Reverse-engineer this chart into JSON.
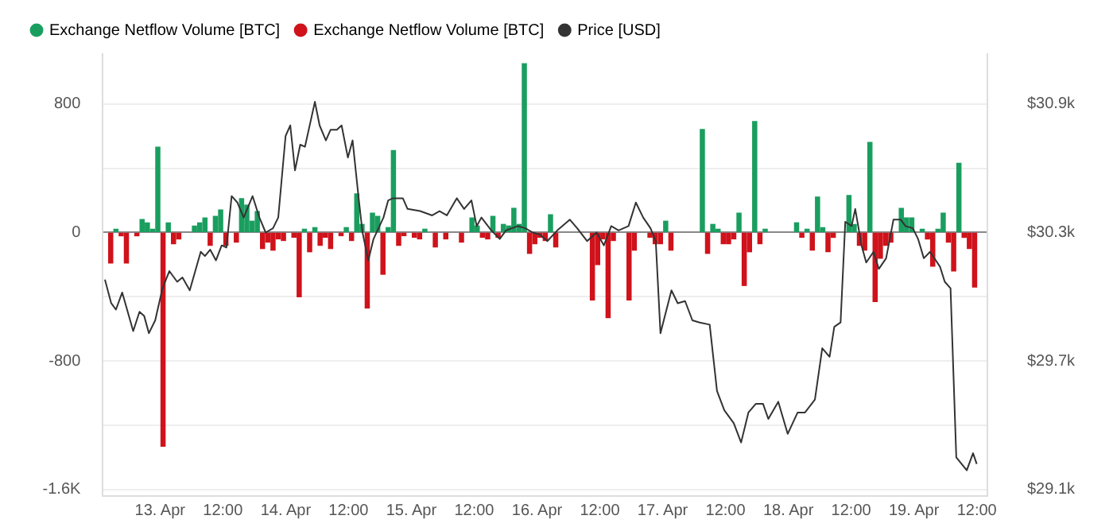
{
  "chart_data": {
    "type": "bar",
    "xlim": [
      "--04-12T13:30",
      "--04-19T14:30"
    ],
    "xticks": [
      {
        "value": "--04-13",
        "label": "13. Apr"
      },
      {
        "value": "--04-13T12:00",
        "label": "12:00"
      },
      {
        "value": "--04-14",
        "label": "14. Apr"
      },
      {
        "value": "--04-14T12:00",
        "label": "12:00"
      },
      {
        "value": "--04-15",
        "label": "15. Apr"
      },
      {
        "value": "--04-15T12:00",
        "label": "12:00"
      },
      {
        "value": "--04-16",
        "label": "16. Apr"
      },
      {
        "value": "--04-16T12:00",
        "label": "12:00"
      },
      {
        "value": "--04-17",
        "label": "17. Apr"
      },
      {
        "value": "--04-17T12:00",
        "label": "12:00"
      },
      {
        "value": "--04-18",
        "label": "18. Apr"
      },
      {
        "value": "--04-18T12:00",
        "label": "12:00"
      },
      {
        "value": "--04-19",
        "label": "19. Apr"
      },
      {
        "value": "--04-19T12:00",
        "label": "12:00"
      }
    ],
    "ylim": [
      -1640,
      1110
    ],
    "yticks": [
      {
        "value": -1600,
        "label": "-1.6K"
      },
      {
        "value": -1200,
        "label": null
      },
      -800,
      {
        "value": -400,
        "label": null
      },
      0,
      {
        "value": 400,
        "label": null
      },
      800
    ],
    "y2lim": [
      29070,
      31133
    ],
    "y2ticks": [
      {
        "value": 29100,
        "label": "$29.1k"
      },
      {
        "value": 29700,
        "label": "$29.7k"
      },
      {
        "value": 30300,
        "label": "$30.3k"
      },
      {
        "value": 30900,
        "label": "$30.9k"
      }
    ],
    "grid": "y",
    "legend": "top left",
    "series": [
      {
        "name": "Exchange Netflow Volume [BTC]",
        "color": "#1a9e5f",
        "x": [
          "--04-12T16:00",
          "--04-12T21:00",
          "--04-12T22:00",
          "--04-12T23:00",
          "--04-13T00:00",
          "--04-13T02:00",
          "--04-13T07:00",
          "--04-13T08:00",
          "--04-13T09:00",
          "--04-13T11:00",
          "--04-13T12:00",
          "--04-13T16:00",
          "--04-13T17:00",
          "--04-13T18:00",
          "--04-13T19:00",
          "--04-14T04:00",
          "--04-14T06:00",
          "--04-14T12:00",
          "--04-14T14:00",
          "--04-14T15:00",
          "--04-14T17:00",
          "--04-14T18:00",
          "--04-14T20:00",
          "--04-14T21:00",
          "--04-15T03:00",
          "--04-15T12:00",
          "--04-15T13:00",
          "--04-15T16:00",
          "--04-15T18:00",
          "--04-15T19:00",
          "--04-15T20:00",
          "--04-15T21:00",
          "--04-15T22:00",
          "--04-16T03:00",
          "--04-17T01:00",
          "--04-17T08:00",
          "--04-17T10:00",
          "--04-17T11:00",
          "--04-17T15:00",
          "--04-17T18:00",
          "--04-17T20:00",
          "--04-18T02:00",
          "--04-18T04:00",
          "--04-18T06:00",
          "--04-18T07:00",
          "--04-18T12:00",
          "--04-18T13:00",
          "--04-18T16:00",
          "--04-18T22:00",
          "--04-18T23:00",
          "--04-19T00:00",
          "--04-19T02:00",
          "--04-19T05:00",
          "--04-19T06:00",
          "--04-19T09:00"
        ],
        "values": [
          20,
          80,
          60,
          20,
          530,
          60,
          40,
          60,
          90,
          100,
          140,
          210,
          170,
          70,
          130,
          20,
          30,
          30,
          240,
          50,
          120,
          100,
          30,
          510,
          20,
          90,
          40,
          100,
          50,
          40,
          150,
          50,
          1050,
          110,
          70,
          640,
          50,
          20,
          120,
          690,
          20,
          60,
          20,
          220,
          30,
          230,
          50,
          560,
          150,
          90,
          90,
          20,
          20,
          120,
          430
        ]
      },
      {
        "name": "Exchange Netflow Volume [BTC]",
        "color": "#d0121b",
        "x": [
          "--04-12T15:00",
          "--04-12T17:00",
          "--04-12T18:00",
          "--04-12T20:00",
          "--04-13T01:00",
          "--04-13T03:00",
          "--04-13T04:00",
          "--04-13T10:00",
          "--04-13T13:00",
          "--04-13T15:00",
          "--04-13T20:00",
          "--04-13T21:00",
          "--04-13T22:00",
          "--04-13T23:00",
          "--04-14T00:00",
          "--04-14T02:00",
          "--04-14T03:00",
          "--04-14T05:00",
          "--04-14T07:00",
          "--04-14T08:00",
          "--04-14T09:00",
          "--04-14T11:00",
          "--04-14T13:00",
          "--04-14T16:00",
          "--04-14T19:00",
          "--04-14T22:00",
          "--04-14T23:00",
          "--04-15T01:00",
          "--04-15T02:00",
          "--04-15T05:00",
          "--04-15T07:00",
          "--04-15T10:00",
          "--04-15T14:00",
          "--04-15T15:00",
          "--04-15T17:00",
          "--04-15T23:00",
          "--04-16T00:00",
          "--04-16T01:00",
          "--04-16T02:00",
          "--04-16T04:00",
          "--04-16T11:00",
          "--04-16T12:00",
          "--04-16T13:00",
          "--04-16T14:00",
          "--04-16T15:00",
          "--04-16T18:00",
          "--04-16T19:00",
          "--04-16T22:00",
          "--04-16T23:00",
          "--04-17T00:00",
          "--04-17T02:00",
          "--04-17T09:00",
          "--04-17T12:00",
          "--04-17T13:00",
          "--04-17T14:00",
          "--04-17T16:00",
          "--04-17T17:00",
          "--04-17T19:00",
          "--04-18T03:00",
          "--04-18T05:00",
          "--04-18T08:00",
          "--04-18T09:00",
          "--04-18T14:00",
          "--04-18T15:00",
          "--04-18T17:00",
          "--04-18T18:00",
          "--04-18T19:00",
          "--04-18T20:00",
          "--04-19T03:00",
          "--04-19T04:00",
          "--04-19T07:00",
          "--04-19T08:00",
          "--04-19T10:00",
          "--04-19T11:00",
          "--04-19T12:00"
        ],
        "values": [
          -190,
          -20,
          -190,
          -20,
          -1330,
          -70,
          -40,
          -80,
          -80,
          -60,
          -100,
          -60,
          -110,
          -40,
          -50,
          -30,
          -400,
          -120,
          -80,
          -30,
          -100,
          -20,
          -50,
          -470,
          -260,
          -80,
          -20,
          -30,
          -40,
          -90,
          -40,
          -60,
          -30,
          -40,
          -30,
          -130,
          -70,
          -30,
          -50,
          -90,
          -420,
          -200,
          -40,
          -530,
          -50,
          -420,
          -110,
          -30,
          -70,
          -70,
          -110,
          -130,
          -70,
          -70,
          -40,
          -330,
          -120,
          -70,
          -30,
          -110,
          -120,
          -30,
          -80,
          -110,
          -430,
          -160,
          -80,
          -60,
          -40,
          -210,
          -60,
          -240,
          -30,
          -100,
          -340
        ]
      },
      {
        "type": "line",
        "name": "Price [USD]",
        "color": "#333333",
        "axis": "y2",
        "marker": "none",
        "line_style": "solid",
        "x": [
          "--04-12T13:54",
          "--04-12T15:06",
          "--04-12T16:00",
          "--04-12T17:12",
          "--04-12T19:18",
          "--04-12T20:30",
          "--04-12T21:24",
          "--04-12T22:18",
          "--04-12T23:30",
          "--04-13T00:54",
          "--04-13T02:12",
          "--04-13T03:42",
          "--04-13T04:42",
          "--04-13T06:06",
          "--04-13T08:12",
          "--04-13T09:00",
          "--04-13T10:00",
          "--04-13T11:06",
          "--04-13T12:12",
          "--04-13T13:06",
          "--04-13T14:06",
          "--04-13T15:12",
          "--04-13T16:24",
          "--04-13T18:06",
          "--04-13T19:24",
          "--04-13T20:36",
          "--04-13T22:00",
          "--04-13T23:00",
          "--04-14T00:24",
          "--04-14T01:18",
          "--04-14T02:12",
          "--04-14T03:12",
          "--04-14T04:06",
          "--04-14T06:00",
          "--04-14T06:54",
          "--04-14T08:06",
          "--04-14T09:00",
          "--04-14T10:12",
          "--04-14T11:06",
          "--04-14T12:18",
          "--04-14T13:12",
          "--04-14T14:24",
          "--04-14T15:06",
          "--04-14T16:12",
          "--04-14T17:12",
          "--04-14T19:06",
          "--04-14T20:00",
          "--04-14T20:54",
          "--04-14T22:48",
          "--04-14T23:42",
          "--04-15T02:06",
          "--04-15T04:24",
          "--04-15T05:48",
          "--04-15T07:12",
          "--04-15T09:06",
          "--04-15T10:30",
          "--04-15T11:54",
          "--04-15T12:54",
          "--04-15T13:48",
          "--04-15T15:42",
          "--04-15T17:18",
          "--04-15T18:30",
          "--04-15T20:48",
          "--04-15T22:12",
          "--04-15T23:36",
          "--04-16T01:00",
          "--04-16T02:24",
          "--04-16T04:18",
          "--04-16T06:42",
          "--04-16T08:06",
          "--04-16T10:00",
          "--04-16T11:48",
          "--04-16T13:12",
          "--04-16T14:36",
          "--04-16T16:00",
          "--04-16T17:54",
          "--04-16T19:18",
          "--04-16T20:42",
          "--04-16T22:06",
          "--04-16T23:06",
          "--04-17T00:00",
          "--04-17T02:06",
          "--04-17T03:18",
          "--04-17T04:42",
          "--04-17T06:06",
          "--04-17T07:30",
          "--04-17T09:24",
          "--04-17T10:48",
          "--04-17T12:12",
          "--04-17T14:00",
          "--04-17T15:24",
          "--04-17T16:48",
          "--04-17T18:12",
          "--04-17T19:36",
          "--04-17T20:36",
          "--04-17T22:30",
          "--04-18T00:18",
          "--04-18T02:12",
          "--04-18T03:36",
          "--04-18T05:30",
          "--04-18T06:54",
          "--04-18T08:18",
          "--04-18T09:12",
          "--04-18T10:24",
          "--04-18T11:18",
          "--04-18T12:30",
          "--04-18T13:12",
          "--04-18T14:24",
          "--04-18T15:18",
          "--04-18T16:42",
          "--04-18T17:42",
          "--04-18T19:06",
          "--04-18T20:30",
          "--04-18T21:54",
          "--04-18T22:48",
          "--04-19T00:12",
          "--04-19T01:12",
          "--04-19T02:18",
          "--04-19T03:30",
          "--04-19T05:24",
          "--04-19T06:18",
          "--04-19T07:24",
          "--04-19T08:30",
          "--04-19T10:30",
          "--04-19T11:42",
          "--04-19T12:24"
        ],
        "values": [
          30080,
          29970,
          29940,
          30020,
          29840,
          29930,
          29910,
          29830,
          29890,
          30040,
          30120,
          30070,
          30090,
          30030,
          30210,
          30190,
          30220,
          30170,
          30240,
          30230,
          30470,
          30440,
          30370,
          30470,
          30370,
          30300,
          30320,
          30370,
          30750,
          30800,
          30590,
          30710,
          30700,
          30910,
          30800,
          30730,
          30780,
          30780,
          30800,
          30650,
          30730,
          30450,
          30300,
          30170,
          30270,
          30370,
          30450,
          30460,
          30460,
          30410,
          30400,
          30380,
          30400,
          30380,
          30460,
          30410,
          30450,
          30330,
          30370,
          30310,
          30270,
          30310,
          30330,
          30320,
          30300,
          30290,
          30260,
          30310,
          30360,
          30320,
          30260,
          30300,
          30240,
          30330,
          30310,
          30330,
          30440,
          30370,
          30320,
          30260,
          29830,
          30030,
          29970,
          29980,
          29890,
          29880,
          29870,
          29560,
          29470,
          29410,
          29320,
          29460,
          29500,
          29500,
          29430,
          29510,
          29360,
          29460,
          29460,
          29520,
          29760,
          29720,
          29860,
          29880,
          30350,
          30330,
          30410,
          30240,
          30160,
          30210,
          30130,
          30180,
          30360,
          30360,
          30330,
          30320,
          30270,
          30180,
          30210,
          30140,
          30070,
          30040,
          29250,
          29190,
          29270,
          29220
        ]
      }
    ]
  }
}
